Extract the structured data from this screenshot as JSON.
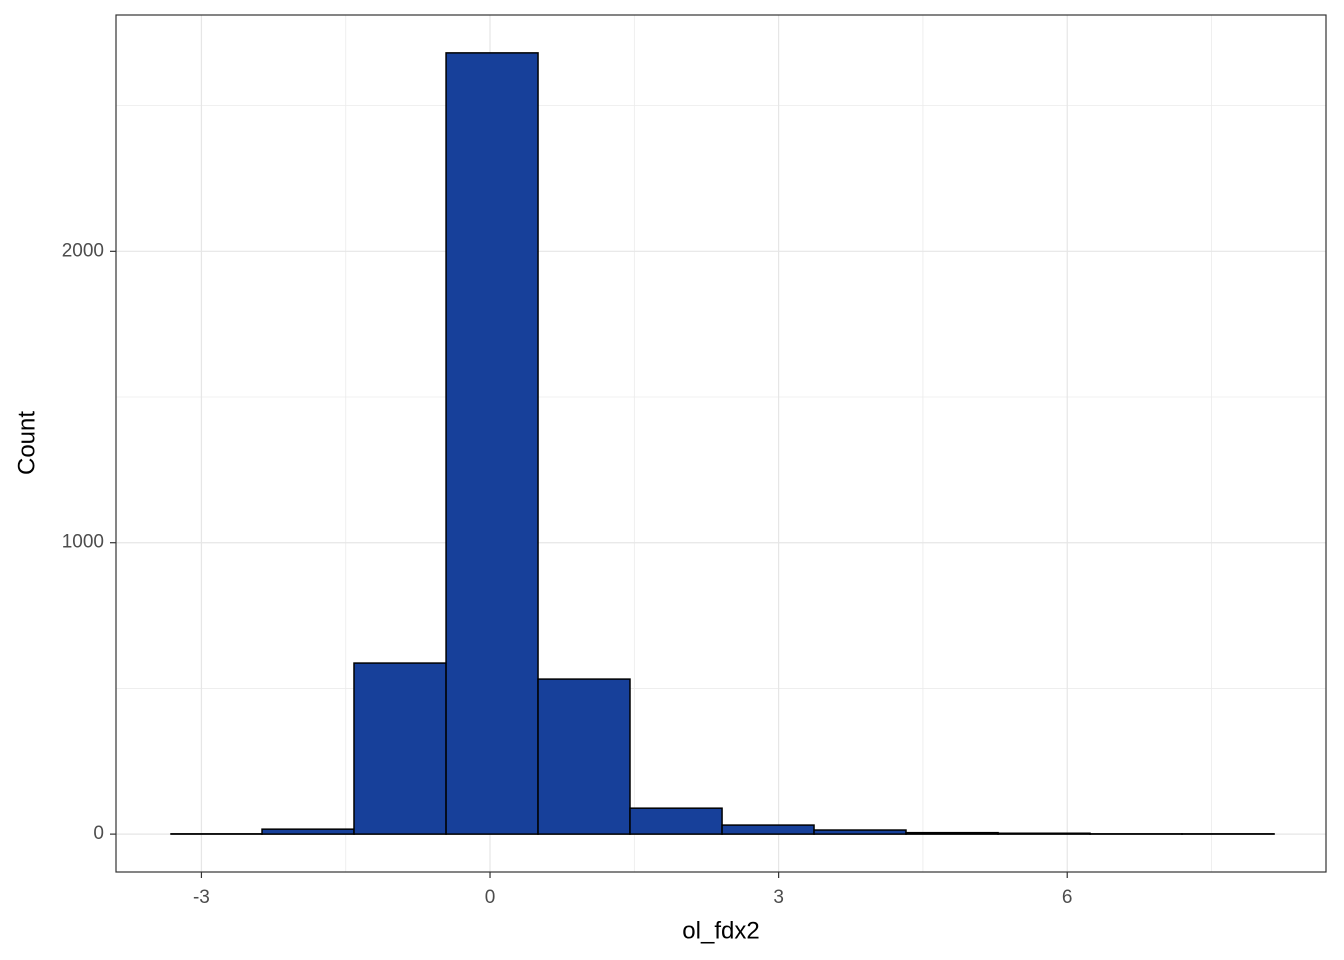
{
  "chart_data": {
    "type": "histogram",
    "x_label": "ol_fdx2",
    "y_label": "Count",
    "bins": [
      -3.316,
      -2.37,
      -1.414,
      -0.457,
      0.499,
      1.455,
      2.412,
      3.368,
      4.324,
      5.281,
      6.237,
      7.193,
      8.15
    ],
    "counts": [
      1,
      17,
      587,
      2681,
      532,
      89,
      31,
      14,
      5,
      3,
      1,
      1
    ],
    "color": "#17409a",
    "xlim": [
      -3.888,
      8.69
    ],
    "ylim": [
      -130,
      2811
    ],
    "xticks": [
      -3,
      0,
      3,
      6
    ],
    "yticks": [
      0,
      1000,
      2000
    ],
    "x_minor_grid": [
      -1.5,
      1.5,
      4.5,
      7.5
    ],
    "y_minor_grid": [
      500,
      1500,
      2500
    ],
    "grid": true
  }
}
